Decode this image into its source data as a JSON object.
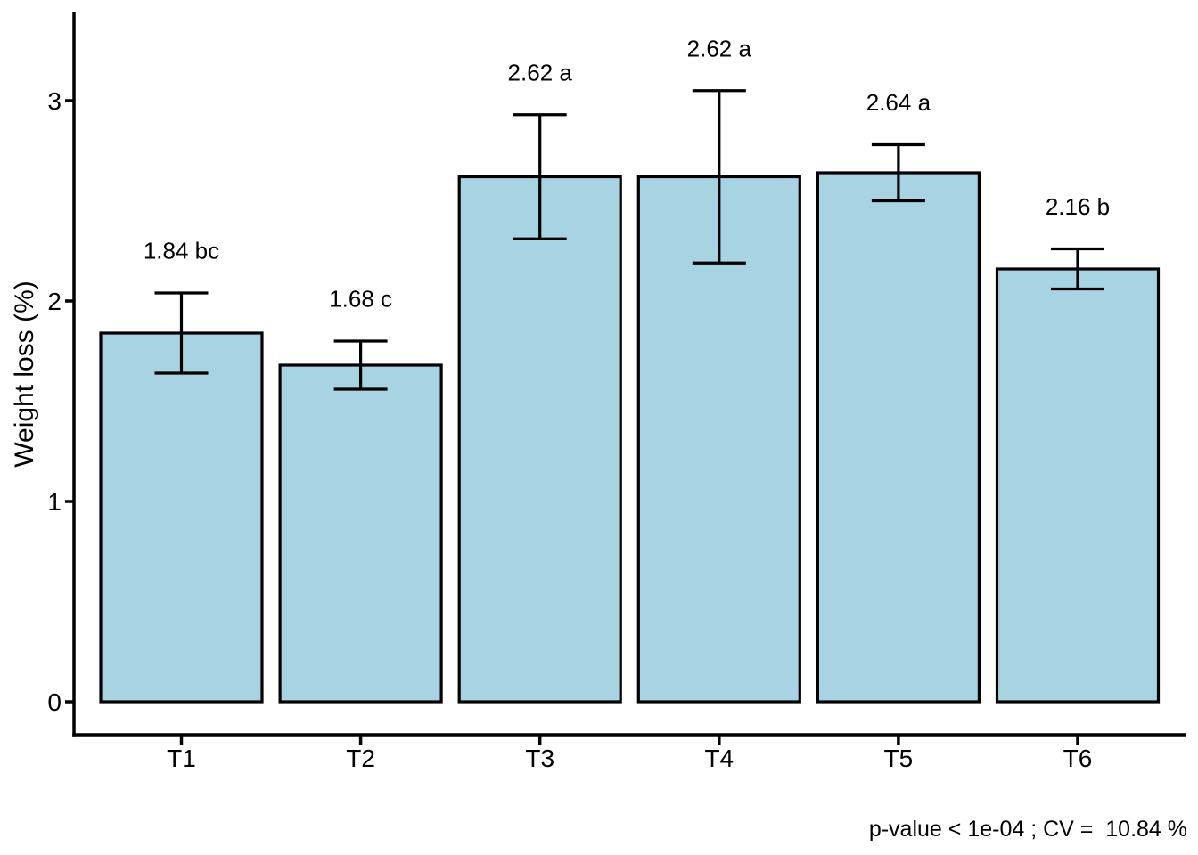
{
  "chart_data": {
    "type": "bar",
    "title": "",
    "categories": [
      "T1",
      "T2",
      "T3",
      "T4",
      "T5",
      "T6"
    ],
    "values": [
      1.84,
      1.68,
      2.62,
      2.62,
      2.64,
      2.16
    ],
    "errors": [
      0.2,
      0.12,
      0.31,
      0.43,
      0.14,
      0.1
    ],
    "bar_labels": [
      "1.84 bc",
      "1.68 c",
      "2.62 a",
      "2.62 a",
      "2.64 a",
      "2.16 b"
    ],
    "significance_groups": [
      "bc",
      "c",
      "a",
      "a",
      "a",
      "b"
    ],
    "xlabel": "",
    "ylabel": "Weight loss (%)",
    "yticks": [
      0,
      1,
      2,
      3
    ],
    "ylim": [
      -0.17,
      3.47
    ],
    "grid": false,
    "legend": false,
    "error_bars": "symmetric, capped",
    "caption": "p-value < 1e-04 ; CV =  10.84 %",
    "colors": {
      "bar_fill": "#A8D3E3",
      "bar_border": "#000000",
      "axis": "#000000",
      "text": "#000000",
      "background": "#FFFFFF"
    }
  }
}
